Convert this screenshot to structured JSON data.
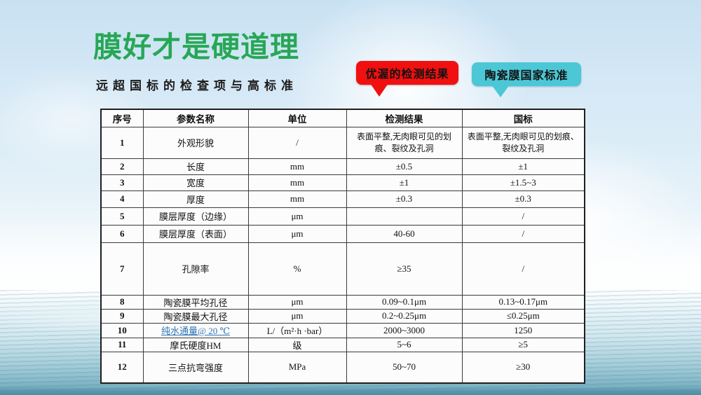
{
  "slide": {
    "title": "膜好才是硬道理",
    "subtitle": "远超国标的检查项与高标准"
  },
  "callouts": {
    "result": {
      "label": "优渥的检测结果",
      "color": "#f01010"
    },
    "standard": {
      "label": "陶瓷膜国家标准",
      "color": "#4cc7d6"
    }
  },
  "colors": {
    "title_green": "#27a755",
    "link_blue": "#2e74b5",
    "sky": "#d3e7f5",
    "water": "#6ca7ba"
  },
  "table": {
    "headers": [
      "序号",
      "参数名称",
      "单位",
      "检测结果",
      "国标"
    ],
    "rows": [
      {
        "no": "1",
        "name": "外观形貌",
        "unit": "/",
        "result": "表面平整,无肉眼可见的划痕、裂纹及孔洞",
        "standard": "表面平整,无肉眼可见的划痕、裂纹及孔洞",
        "link": false
      },
      {
        "no": "2",
        "name": "长度",
        "unit": "mm",
        "result": "±0.5",
        "standard": "±1",
        "link": false
      },
      {
        "no": "3",
        "name": "宽度",
        "unit": "mm",
        "result": "±1",
        "standard": "±1.5~3",
        "link": false
      },
      {
        "no": "4",
        "name": "厚度",
        "unit": "mm",
        "result": "±0.3",
        "standard": "±0.3",
        "link": false
      },
      {
        "no": "5",
        "name": "膜层厚度（边缘）",
        "unit": "μm",
        "result": "",
        "standard": "/",
        "link": false
      },
      {
        "no": "6",
        "name": "膜层厚度（表面）",
        "unit": "μm",
        "result": "40-60",
        "standard": "/",
        "link": false
      },
      {
        "no": "7",
        "name": "孔隙率",
        "unit": "%",
        "result": "≥35",
        "standard": "/",
        "link": false
      },
      {
        "no": "8",
        "name": "陶瓷膜平均孔径",
        "unit": "μm",
        "result": "0.09~0.1μm",
        "standard": "0.13~0.17μm",
        "link": false
      },
      {
        "no": "9",
        "name": "陶瓷膜最大孔径",
        "unit": "μm",
        "result": "0.2~0.25μm",
        "standard": "≤0.25μm",
        "link": false
      },
      {
        "no": "10",
        "name": "纯水通量@ 20 ℃",
        "unit": "L/（m²·h ·bar）",
        "result": "2000~3000",
        "standard": "1250",
        "link": true
      },
      {
        "no": "11",
        "name": "摩氏硬度HM",
        "unit": "级",
        "result": "5~6",
        "standard": "≥5",
        "link": false
      },
      {
        "no": "12",
        "name": "三点抗弯强度",
        "unit": "MPa",
        "result": "50~70",
        "standard": "≥30",
        "link": false
      }
    ]
  }
}
